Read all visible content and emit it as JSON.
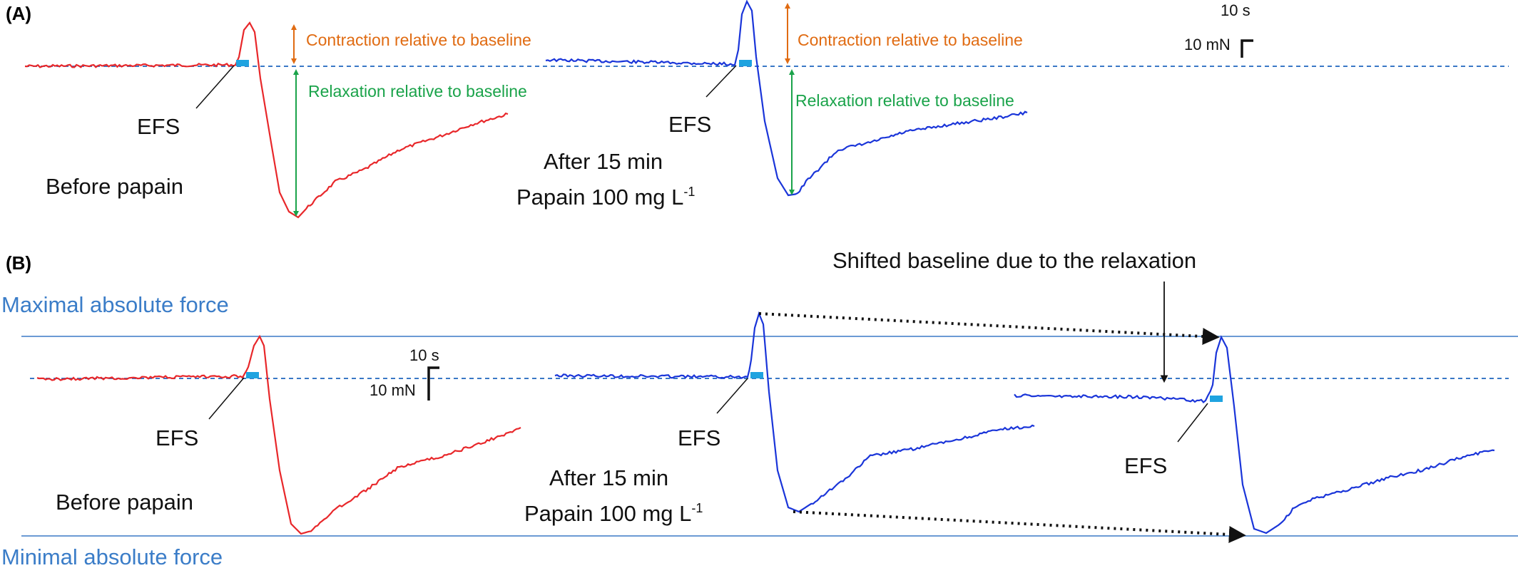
{
  "panel_a": {
    "label": "(A)",
    "before_label": "Before papain",
    "after_line1": "After 15 min",
    "after_line2": "Papain 100 mg L",
    "after_sup": "-1",
    "efs_label": "EFS",
    "contraction_label": "Contraction relative to baseline",
    "relaxation_label": "Relaxation relative to baseline",
    "scale_time": "10 s",
    "scale_force": "10 mN"
  },
  "panel_b": {
    "label": "(B)",
    "max_force_label": "Maximal absolute force",
    "min_force_label": "Minimal absolute force",
    "shifted_label": "Shifted baseline due to the relaxation",
    "before_label": "Before papain",
    "after_line1": "After 15 min",
    "after_line2": "Papain 100 mg L",
    "after_sup": "-1",
    "efs_label": "EFS",
    "scale_time": "10 s",
    "scale_force": "10 mN"
  },
  "colors": {
    "before_trace": "#e8272a",
    "after_trace": "#1a35d9",
    "efs_marker": "#1fa3e0",
    "baseline": "#3a78c6",
    "contraction_arrow": "#e06b12",
    "relaxation_arrow": "#1aa34a",
    "force_lines": "#3a78c6"
  }
}
